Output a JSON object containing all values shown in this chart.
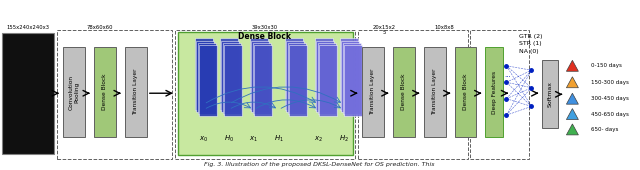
{
  "title": "Fig. 3. Illustration of the proposed DKSL-DenseNet for OS prediction. This",
  "bg_color": "#ffffff",
  "input_dims": [
    "155x240x240x3",
    "78x60x60",
    "39x30x30",
    "20x15x2",
    "10x8x8"
  ],
  "input_dims2": [
    "",
    "",
    "",
    "5",
    ""
  ],
  "block_labels": [
    "Convolution\nPooling",
    "Dense Block",
    "Transition Layer",
    "Dense Block",
    "Transition Layer",
    "Dense Block",
    "Transition Layer",
    "Dense Block",
    "Deep Features",
    "Softmax"
  ],
  "dense_block_label": "Dense Block",
  "gtr_labels": [
    "GTR (2)",
    "STR (1)",
    "NA (0)"
  ],
  "survival_labels": [
    "0-150 days",
    "150-300 days",
    "300-450 days",
    "450-650 days",
    "650- days"
  ],
  "survival_colors": [
    "#e03020",
    "#f0a030",
    "#4090e0",
    "#40a0e0",
    "#40b050"
  ],
  "arrow_color": "#000000",
  "dashed_box_color": "#606060",
  "dense_block_fill": "#a0c878",
  "dense_block_big_fill": "#c8e8a0",
  "transition_fill": "#c0c0c0",
  "deep_features_fill": "#a0c878",
  "softmax_fill": "#c0c0c0",
  "nn_dot_color": "#0020c0",
  "image_bg": "#101010"
}
